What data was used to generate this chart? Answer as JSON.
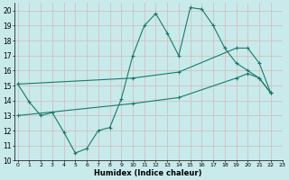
{
  "bg_color": "#c8eaea",
  "grid_color": "#d4b8b8",
  "line_color": "#1a7a6a",
  "line1_x": [
    0,
    1,
    2,
    3,
    4,
    5,
    6,
    7,
    8,
    9,
    10,
    11,
    12,
    13,
    14,
    15,
    16,
    17,
    18,
    19,
    20,
    21,
    22
  ],
  "line1_y": [
    15.1,
    13.9,
    13.0,
    13.2,
    11.9,
    10.5,
    10.8,
    12.0,
    12.2,
    14.1,
    17.0,
    19.0,
    19.8,
    18.5,
    17.0,
    20.2,
    20.1,
    19.0,
    17.5,
    16.5,
    16.0,
    15.5,
    14.5
  ],
  "line2_x": [
    0,
    10,
    14,
    19,
    20,
    21,
    22
  ],
  "line2_y": [
    15.1,
    15.5,
    15.9,
    17.5,
    17.5,
    16.5,
    14.5
  ],
  "line3_x": [
    0,
    10,
    14,
    19,
    20,
    21,
    22
  ],
  "line3_y": [
    13.0,
    13.8,
    14.2,
    15.5,
    15.8,
    15.5,
    14.5
  ],
  "xlabel": "Humidex (Indice chaleur)",
  "xlim": [
    -0.3,
    23.0
  ],
  "ylim": [
    10,
    20.5
  ],
  "xticks": [
    0,
    1,
    2,
    3,
    4,
    5,
    6,
    7,
    8,
    9,
    10,
    11,
    12,
    13,
    14,
    15,
    16,
    17,
    18,
    19,
    20,
    21,
    22,
    23
  ],
  "yticks": [
    10,
    11,
    12,
    13,
    14,
    15,
    16,
    17,
    18,
    19,
    20
  ]
}
